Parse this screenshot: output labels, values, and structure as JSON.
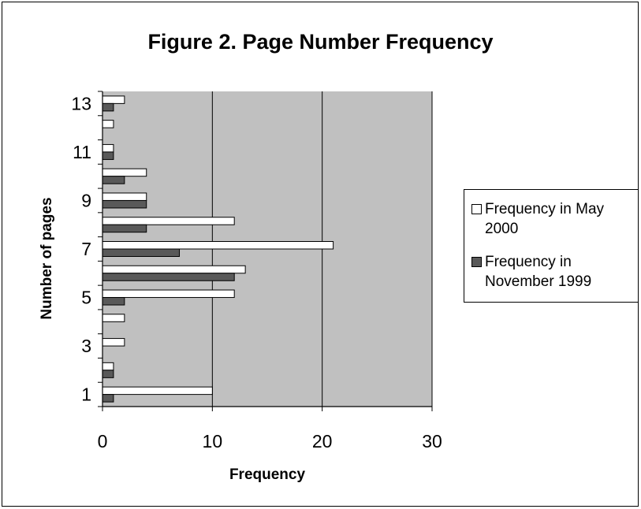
{
  "chart_data": {
    "type": "bar",
    "orientation": "horizontal",
    "title": "Figure 2. Page Number Frequency",
    "xlabel": "Frequency",
    "ylabel": "Number of pages",
    "xlim": [
      0,
      30
    ],
    "x_ticks": [
      0,
      10,
      20,
      30
    ],
    "categories": [
      1,
      2,
      3,
      4,
      5,
      6,
      7,
      8,
      9,
      10,
      11,
      12,
      13
    ],
    "y_tick_labels": [
      "1",
      "3",
      "5",
      "7",
      "9",
      "11",
      "13"
    ],
    "series": [
      {
        "name": "Frequency in May 2000",
        "color": "#ffffff",
        "values": [
          10,
          1,
          2,
          2,
          12,
          13,
          21,
          12,
          4,
          4,
          1,
          1,
          2
        ]
      },
      {
        "name": "Frequency in November 1999",
        "color": "#595959",
        "values": [
          1,
          1,
          0,
          0,
          2,
          12,
          7,
          4,
          4,
          2,
          1,
          0,
          1
        ]
      }
    ],
    "plot_background": "#c0c0c0",
    "grid": "vertical major lines",
    "legend_position": "right"
  }
}
